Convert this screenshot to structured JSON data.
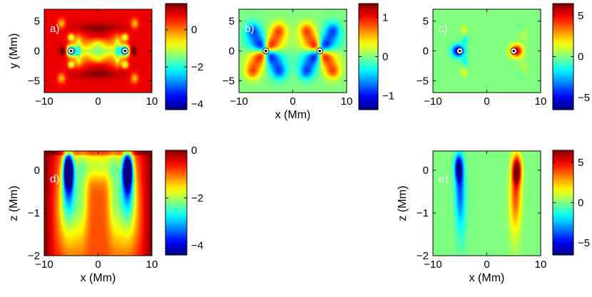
{
  "chart_data": [
    {
      "id": "a",
      "type": "heatmap",
      "panel_label": "a)",
      "plane": "xy",
      "xlabel": "",
      "ylabel": "y (Mm)",
      "xlim": [
        -10,
        10
      ],
      "ylim": [
        -7,
        7
      ],
      "xticks": [
        -10,
        0,
        10
      ],
      "yticks": [
        -5,
        0,
        5
      ],
      "clim": [
        -4.3,
        1.4
      ],
      "cbar_ticks": [
        -4,
        -2,
        0
      ],
      "sources": [
        {
          "x": -5,
          "y": 0
        },
        {
          "x": 5,
          "y": 0
        }
      ],
      "description_values": {
        "background": 0.8,
        "central_region": -1.5,
        "source_halo": -4.0,
        "corner_spots": -1.0
      }
    },
    {
      "id": "b",
      "type": "heatmap",
      "panel_label": "b)",
      "plane": "xy",
      "xlabel": "x (Mm)",
      "ylabel": "",
      "xlim": [
        -10,
        10
      ],
      "ylim": [
        -7,
        7
      ],
      "xticks": [
        -10,
        0,
        10
      ],
      "yticks": [
        -5,
        0,
        5
      ],
      "clim": [
        -1.35,
        1.35
      ],
      "cbar_ticks": [
        -1,
        0,
        1
      ],
      "sources": [
        {
          "x": -5,
          "y": 0
        },
        {
          "x": 5,
          "y": 0
        }
      ],
      "description_values": {
        "background": 0.0,
        "lobe_amplitude": 1.3
      }
    },
    {
      "id": "c",
      "type": "heatmap",
      "panel_label": "c)",
      "plane": "xy",
      "xlabel": "",
      "ylabel": "",
      "xlim": [
        -10,
        10
      ],
      "ylim": [
        -7,
        7
      ],
      "xticks": [
        -10,
        0,
        10
      ],
      "yticks": [
        -5,
        0,
        5
      ],
      "clim": [
        -6.5,
        6.5
      ],
      "cbar_ticks": [
        -5,
        0,
        5
      ],
      "sources": [
        {
          "x": -5,
          "y": 0
        },
        {
          "x": 5,
          "y": 0
        }
      ],
      "description_values": {
        "left_source": -6.0,
        "right_source": 6.0,
        "background": 0.0
      }
    },
    {
      "id": "d",
      "type": "heatmap",
      "panel_label": "d)",
      "plane": "xz",
      "xlabel": "x (Mm)",
      "ylabel": "z (Mm)",
      "xlim": [
        -10,
        10
      ],
      "ylim": [
        -2,
        0.45
      ],
      "xticks": [
        -10,
        0,
        10
      ],
      "yticks": [
        -2,
        -1,
        0
      ],
      "clim": [
        -4.4,
        0
      ],
      "cbar_ticks": [
        -4,
        -2,
        0
      ],
      "sources": [
        {
          "x": -5.5,
          "z": 0
        },
        {
          "x": 5.5,
          "z": 0
        }
      ],
      "description_values": {
        "background": -0.5,
        "column_core": -4.2
      }
    },
    {
      "id": "e",
      "type": "heatmap",
      "panel_label": "e)",
      "plane": "xz",
      "xlabel": "x (Mm)",
      "ylabel": "z (Mm)",
      "xlim": [
        -10,
        10
      ],
      "ylim": [
        -2,
        0.45
      ],
      "xticks": [
        -10,
        0,
        10
      ],
      "yticks": [
        -2,
        -1,
        0
      ],
      "clim": [
        -6.5,
        6.5
      ],
      "cbar_ticks": [
        -5,
        0,
        5
      ],
      "sources": [
        {
          "x": -5,
          "z": 0
        },
        {
          "x": 5.5,
          "z": 0
        }
      ],
      "description_values": {
        "left_column": -6.0,
        "right_column": 6.0,
        "background": 0.0
      }
    }
  ]
}
